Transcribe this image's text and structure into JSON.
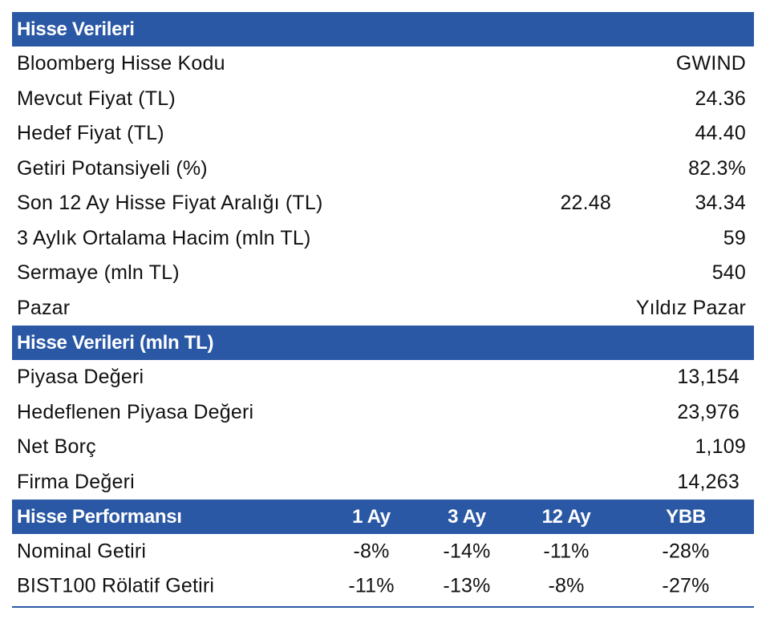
{
  "section1": {
    "title": "Hisse Verileri",
    "rows": [
      {
        "label": "Bloomberg Hisse Kodu",
        "value": "GWIND"
      },
      {
        "label": "Mevcut Fiyat (TL)",
        "value": "24.36"
      },
      {
        "label": "Hedef Fiyat (TL)",
        "value": "44.40"
      },
      {
        "label": "Getiri Potansiyeli (%)",
        "value": "82.3%"
      },
      {
        "label": "Son 12 Ay Hisse Fiyat Aralığı (TL)",
        "low": "22.48",
        "value": "34.34"
      },
      {
        "label": "3 Aylık Ortalama Hacim (mln TL)",
        "value": "59"
      },
      {
        "label": "Sermaye (mln TL)",
        "value": "540"
      },
      {
        "label": "Pazar",
        "value": "Yıldız Pazar"
      }
    ]
  },
  "section2": {
    "title": "Hisse Verileri (mln TL)",
    "rows": [
      {
        "label": "Piyasa Değeri",
        "value": "13,154"
      },
      {
        "label": "Hedeflenen Piyasa Değeri",
        "value": "23,976"
      },
      {
        "label": "Net Borç",
        "value": "1,109"
      },
      {
        "label": "Firma Değeri",
        "value": "14,263"
      }
    ]
  },
  "section3": {
    "title": "Hisse Performansı",
    "columns": [
      "1 Ay",
      "3 Ay",
      "12 Ay",
      "YBB"
    ],
    "rows": [
      {
        "label": "Nominal Getiri",
        "values": [
          "-8%",
          "-14%",
          "-11%",
          "-28%"
        ]
      },
      {
        "label": "BIST100 Rölatif Getiri",
        "values": [
          "-11%",
          "-13%",
          "-8%",
          "-27%"
        ]
      }
    ]
  },
  "colors": {
    "header_bg": "#2a58a5",
    "header_text": "#ffffff",
    "body_text": "#111111"
  }
}
